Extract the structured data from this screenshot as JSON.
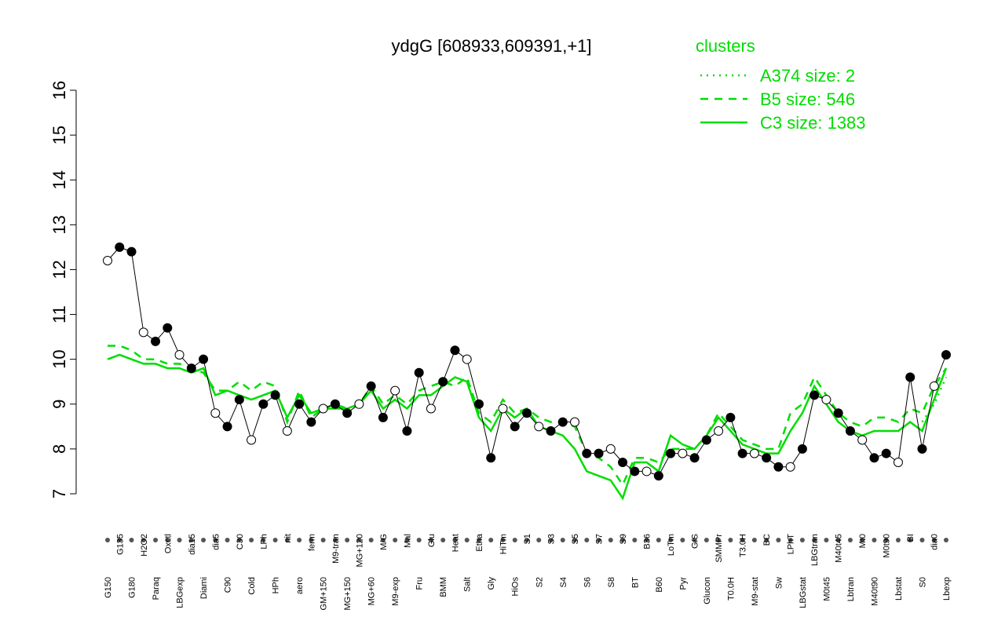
{
  "chart_data": {
    "type": "line",
    "title": "ydgG [608933,609391,+1]",
    "legend_title": "clusters",
    "categories": [
      "G150",
      "G135",
      "G180",
      "H2O2",
      "Paraq",
      "Oxctl",
      "LBGexp",
      "dia15",
      "Diami",
      "dia5",
      "C90",
      "C30",
      "Cold",
      "LPh",
      "HPh",
      "nit",
      "aero",
      "ferm",
      "GM+150",
      "M9-tran",
      "MG+150",
      "MG+120",
      "MG+60",
      "M/G",
      "M9-exp",
      "Mal",
      "Fru",
      "Glu",
      "BMM",
      "Heat",
      "Salt",
      "Etha",
      "Gly",
      "HiTm",
      "HiOs",
      "S1",
      "S2",
      "S3",
      "S4",
      "S5",
      "S6",
      "S7",
      "S8",
      "S9",
      "BT",
      "B36",
      "B60",
      "LoTm",
      "Pyr",
      "G/S",
      "Glucon",
      "SMMPr",
      "T0.0H",
      "T3.0H",
      "M9-stat",
      "BC",
      "Sw",
      "LPhT",
      "LBGstat",
      "LBGtran",
      "M0t45",
      "M40t45",
      "Lbtran",
      "Mt0",
      "M40t90",
      "M0t90",
      "Lbstat",
      "BI",
      "S0",
      "dia0",
      "Lbexp"
    ],
    "values": [
      12.2,
      12.5,
      12.4,
      10.6,
      10.4,
      10.7,
      10.1,
      9.8,
      10.0,
      8.8,
      8.5,
      9.1,
      8.2,
      9.0,
      9.2,
      8.4,
      9.0,
      8.6,
      8.9,
      9.0,
      8.8,
      9.0,
      9.4,
      8.7,
      9.3,
      8.4,
      9.7,
      8.9,
      9.5,
      10.2,
      10.0,
      9.0,
      7.8,
      8.9,
      8.5,
      8.8,
      8.5,
      8.4,
      8.6,
      8.6,
      7.9,
      7.9,
      8.0,
      7.7,
      7.5,
      7.5,
      7.4,
      7.9,
      7.9,
      7.8,
      8.2,
      8.4,
      8.7,
      7.9,
      7.9,
      7.8,
      7.6,
      7.6,
      8.0,
      9.2,
      9.1,
      8.8,
      8.4,
      8.2,
      7.8,
      7.9,
      7.7,
      9.6,
      8.0,
      9.4,
      10.1
    ],
    "series": [
      {
        "name": "A374 size: 2",
        "color": "#00dd00",
        "dash": "2,6",
        "values": [
          null,
          null,
          null,
          null,
          null,
          null,
          null,
          null,
          null,
          null,
          null,
          null,
          null,
          null,
          null,
          null,
          null,
          null,
          null,
          null,
          null,
          null,
          null,
          null,
          null,
          null,
          null,
          null,
          null,
          null,
          null,
          null,
          null,
          null,
          null,
          null,
          null,
          null,
          null,
          null,
          null,
          null,
          null,
          null,
          null,
          null,
          null,
          null,
          null,
          null,
          null,
          null,
          null,
          null,
          null,
          null,
          null,
          null,
          null,
          null,
          null,
          null,
          null,
          null,
          null,
          null,
          null,
          null,
          8.6,
          9.0,
          9.6
        ]
      },
      {
        "name": "B5 size: 546",
        "color": "#00dd00",
        "dash": "10,8",
        "values": [
          10.3,
          10.3,
          10.2,
          10.0,
          10.0,
          9.9,
          9.9,
          9.8,
          9.7,
          9.3,
          9.3,
          9.5,
          9.3,
          9.5,
          9.4,
          8.6,
          9.3,
          8.7,
          8.9,
          9.0,
          8.9,
          9.0,
          9.4,
          9.0,
          9.2,
          9.0,
          9.3,
          9.4,
          9.5,
          9.4,
          9.6,
          8.8,
          8.6,
          9.1,
          8.8,
          8.9,
          8.7,
          8.6,
          8.6,
          8.5,
          7.9,
          7.8,
          7.6,
          7.2,
          7.8,
          7.8,
          7.7,
          8.0,
          8.0,
          8.0,
          8.3,
          8.8,
          8.5,
          8.2,
          8.1,
          8.0,
          8.0,
          8.8,
          9.0,
          9.6,
          9.2,
          8.8,
          8.6,
          8.5,
          8.7,
          8.7,
          8.6,
          8.9,
          8.8,
          9.4,
          9.8
        ]
      },
      {
        "name": "C3 size: 1383",
        "color": "#00dd00",
        "dash": "none",
        "values": [
          10.0,
          10.1,
          10.0,
          9.9,
          9.9,
          9.8,
          9.8,
          9.7,
          9.8,
          9.2,
          9.3,
          9.2,
          9.1,
          9.2,
          9.3,
          8.7,
          9.2,
          8.8,
          8.9,
          8.9,
          8.9,
          9.0,
          9.3,
          8.9,
          9.1,
          8.9,
          9.2,
          9.2,
          9.4,
          9.6,
          9.5,
          8.7,
          8.4,
          8.9,
          8.7,
          8.9,
          8.5,
          8.4,
          8.3,
          8.0,
          7.5,
          7.4,
          7.3,
          6.9,
          7.7,
          7.7,
          7.5,
          8.3,
          8.1,
          8.0,
          8.3,
          8.7,
          8.4,
          8.1,
          8.0,
          7.9,
          7.9,
          8.4,
          8.8,
          9.4,
          9.0,
          8.6,
          8.4,
          8.3,
          8.4,
          8.4,
          8.4,
          8.6,
          8.4,
          9.1,
          9.8
        ]
      }
    ],
    "ylim": [
      7,
      16
    ],
    "yticks": [
      7,
      8,
      9,
      10,
      11,
      12,
      13,
      14,
      15,
      16
    ]
  }
}
